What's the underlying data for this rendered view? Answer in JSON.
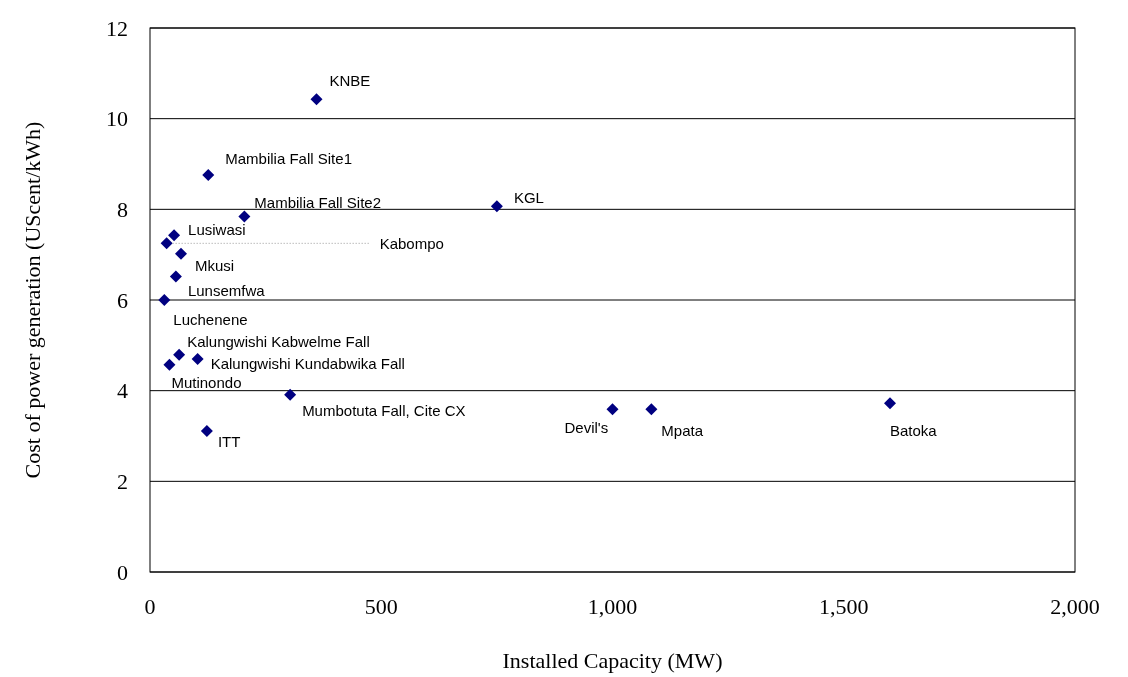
{
  "chart_data": {
    "type": "scatter",
    "xlabel": "Installed Capacity (MW)",
    "ylabel": "Cost of power generation (UScent/kWh)",
    "xlim": [
      0,
      2000
    ],
    "xticks": [
      0,
      500,
      {
        "value": 1000,
        "label": "1,000"
      },
      {
        "value": 1500,
        "label": "1,500"
      },
      {
        "value": 2000,
        "label": "2,000"
      }
    ],
    "ylim": [
      0,
      12
    ],
    "yticks": [
      0,
      2,
      4,
      6,
      8,
      10,
      12
    ],
    "grid": "y",
    "marker": "diamond",
    "series": [
      {
        "color": "#000080",
        "x": [
          360,
          126,
          204,
          750,
          52,
          36,
          67,
          56,
          31,
          63,
          103,
          42,
          303,
          123,
          1000,
          1084,
          1600
        ],
        "values": [
          10.43,
          8.76,
          7.84,
          8.07,
          7.43,
          7.25,
          7.02,
          6.52,
          6.0,
          4.79,
          4.7,
          4.57,
          3.91,
          3.11,
          3.59,
          3.59,
          3.72
        ]
      }
    ],
    "annotations": [
      {
        "text": "KNBE",
        "x": 360,
        "y": 10.43
      },
      {
        "text": "Mambilia Fall Site1",
        "x": 126,
        "y": 8.76
      },
      {
        "text": "Mambilia Fall Site2",
        "x": 204,
        "y": 7.84
      },
      {
        "text": "KGL",
        "x": 750,
        "y": 8.07
      },
      {
        "text": "Lusiwasi",
        "x": 52,
        "y": 7.43
      },
      {
        "text": "Kabompo",
        "x": 36,
        "y": 7.25
      },
      {
        "text": "Mkusi",
        "x": 67,
        "y": 7.02
      },
      {
        "text": "Lunsemfwa",
        "x": 56,
        "y": 6.52
      },
      {
        "text": "Luchenene",
        "x": 31,
        "y": 6.0
      },
      {
        "text": "Kalungwishi Kabwelme Fall",
        "x": 63,
        "y": 4.79
      },
      {
        "text": "Kalungwishi Kundabwika Fall",
        "x": 103,
        "y": 4.7
      },
      {
        "text": "Mutinondo",
        "x": 42,
        "y": 4.57
      },
      {
        "text": "Mumbotuta Fall, Cite CX",
        "x": 303,
        "y": 3.91
      },
      {
        "text": "ITT",
        "x": 123,
        "y": 3.11
      },
      {
        "text": "Devil's",
        "x": 1000,
        "y": 3.59
      },
      {
        "text": "Mpata",
        "x": 1084,
        "y": 3.59
      },
      {
        "text": "Batoka",
        "x": 1600,
        "y": 3.72
      }
    ]
  }
}
